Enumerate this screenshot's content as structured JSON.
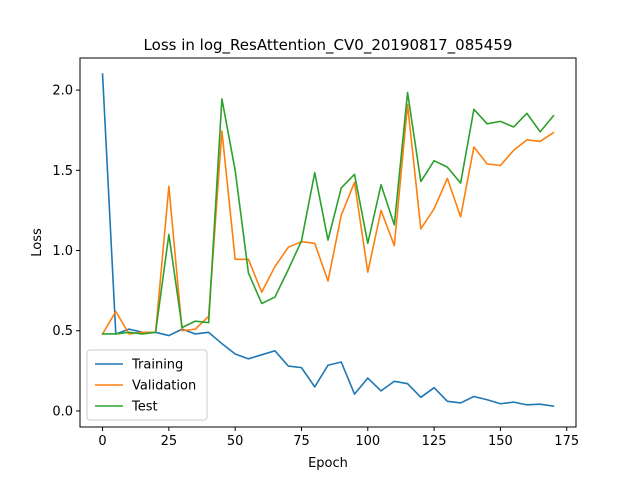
{
  "chart_data": {
    "type": "line",
    "title": "Loss in log_ResAttention_CV0_20190817_085459",
    "xlabel": "Epoch",
    "ylabel": "Loss",
    "xlim": [
      -8.5,
      178.5
    ],
    "ylim": [
      -0.1,
      2.2
    ],
    "xticks": [
      0,
      25,
      50,
      75,
      100,
      125,
      150,
      175
    ],
    "yticks": [
      0.0,
      0.5,
      1.0,
      1.5,
      2.0
    ],
    "xtick_labels": [
      "0",
      "25",
      "50",
      "75",
      "100",
      "125",
      "150",
      "175"
    ],
    "ytick_labels": [
      "0.0",
      "0.5",
      "1.0",
      "1.5",
      "2.0"
    ],
    "grid": false,
    "legend_position": "lower-left",
    "x": [
      0,
      5,
      10,
      15,
      20,
      25,
      30,
      35,
      40,
      45,
      50,
      55,
      60,
      65,
      70,
      75,
      80,
      85,
      90,
      95,
      100,
      105,
      110,
      115,
      120,
      125,
      130,
      135,
      140,
      145,
      150,
      155,
      160,
      165,
      170
    ],
    "series": [
      {
        "name": "Training",
        "color": "#1f77b4",
        "values": [
          2.1,
          0.48,
          0.51,
          0.49,
          0.49,
          0.47,
          0.51,
          0.48,
          0.49,
          0.42,
          0.355,
          0.325,
          0.35,
          0.375,
          0.28,
          0.27,
          0.15,
          0.285,
          0.305,
          0.105,
          0.205,
          0.125,
          0.185,
          0.17,
          0.085,
          0.145,
          0.06,
          0.05,
          0.09,
          0.07,
          0.045,
          0.055,
          0.038,
          0.042,
          0.03
        ]
      },
      {
        "name": "Validation",
        "color": "#ff7f0e",
        "values": [
          0.48,
          0.62,
          0.48,
          0.49,
          0.49,
          1.4,
          0.5,
          0.51,
          0.59,
          1.745,
          0.945,
          0.945,
          0.74,
          0.9,
          1.02,
          1.055,
          1.045,
          0.81,
          1.22,
          1.425,
          0.865,
          1.25,
          1.03,
          1.91,
          1.135,
          1.26,
          1.45,
          1.21,
          1.645,
          1.54,
          1.53,
          1.625,
          1.69,
          1.68,
          1.735
        ]
      },
      {
        "name": "Test",
        "color": "#2ca02c",
        "values": [
          0.48,
          0.48,
          0.49,
          0.48,
          0.49,
          1.1,
          0.52,
          0.56,
          0.55,
          1.945,
          1.5,
          0.86,
          0.67,
          0.71,
          0.88,
          1.06,
          1.485,
          1.065,
          1.39,
          1.475,
          1.045,
          1.41,
          1.16,
          1.985,
          1.43,
          1.56,
          1.52,
          1.42,
          1.88,
          1.79,
          1.805,
          1.77,
          1.855,
          1.74,
          1.84
        ]
      }
    ]
  }
}
